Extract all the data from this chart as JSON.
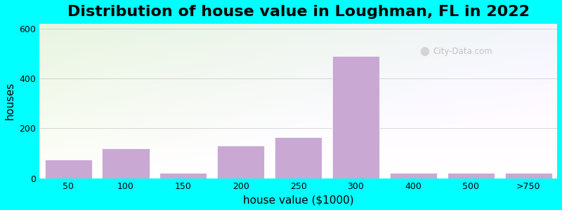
{
  "title": "Distribution of house value in Loughman, FL in 2022",
  "xlabel": "house value ($1000)",
  "ylabel": "houses",
  "bar_labels": [
    "50",
    "100",
    "150",
    "200",
    "250",
    "300",
    "400",
    "500",
    ">750"
  ],
  "bar_values": [
    75,
    120,
    22,
    130,
    165,
    490,
    22,
    22,
    22
  ],
  "bar_positions": [
    1,
    2,
    3,
    4,
    5,
    6,
    7,
    8,
    9
  ],
  "bar_color": "#C9A8D4",
  "ylim": [
    0,
    620
  ],
  "yticks": [
    0,
    200,
    400,
    600
  ],
  "xlim": [
    0.5,
    9.5
  ],
  "figsize": [
    8.0,
    3.0
  ],
  "dpi": 100,
  "bg_outer": "#00FFFF",
  "title_fontsize": 16,
  "axis_label_fontsize": 11,
  "tick_fontsize": 9,
  "watermark_text": "City-Data.com"
}
